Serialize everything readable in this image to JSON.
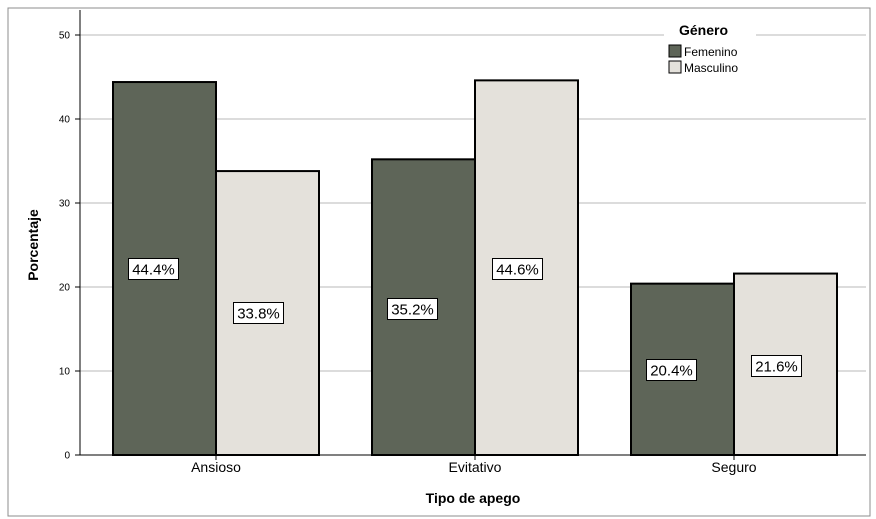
{
  "chart_data": {
    "type": "bar",
    "xlabel": "Tipo de apego",
    "ylabel": "Porcentaje",
    "categories": [
      "Ansioso",
      "Evitativo",
      "Seguro"
    ],
    "ylim": [
      0,
      50
    ],
    "yticks": [
      0,
      10,
      20,
      30,
      40,
      50
    ],
    "grid": true,
    "legend": {
      "title": "Género",
      "placement": "top-right"
    },
    "series": [
      {
        "name": "Femenino",
        "values": [
          44.4,
          35.2,
          20.4
        ],
        "labels": [
          "44.4%",
          "35.2%",
          "20.4%"
        ],
        "color": "#5e6558"
      },
      {
        "name": "Masculino",
        "values": [
          33.8,
          44.6,
          21.6
        ],
        "labels": [
          "33.8%",
          "44.6%",
          "21.6%"
        ],
        "color": "#e4e1db"
      }
    ]
  }
}
